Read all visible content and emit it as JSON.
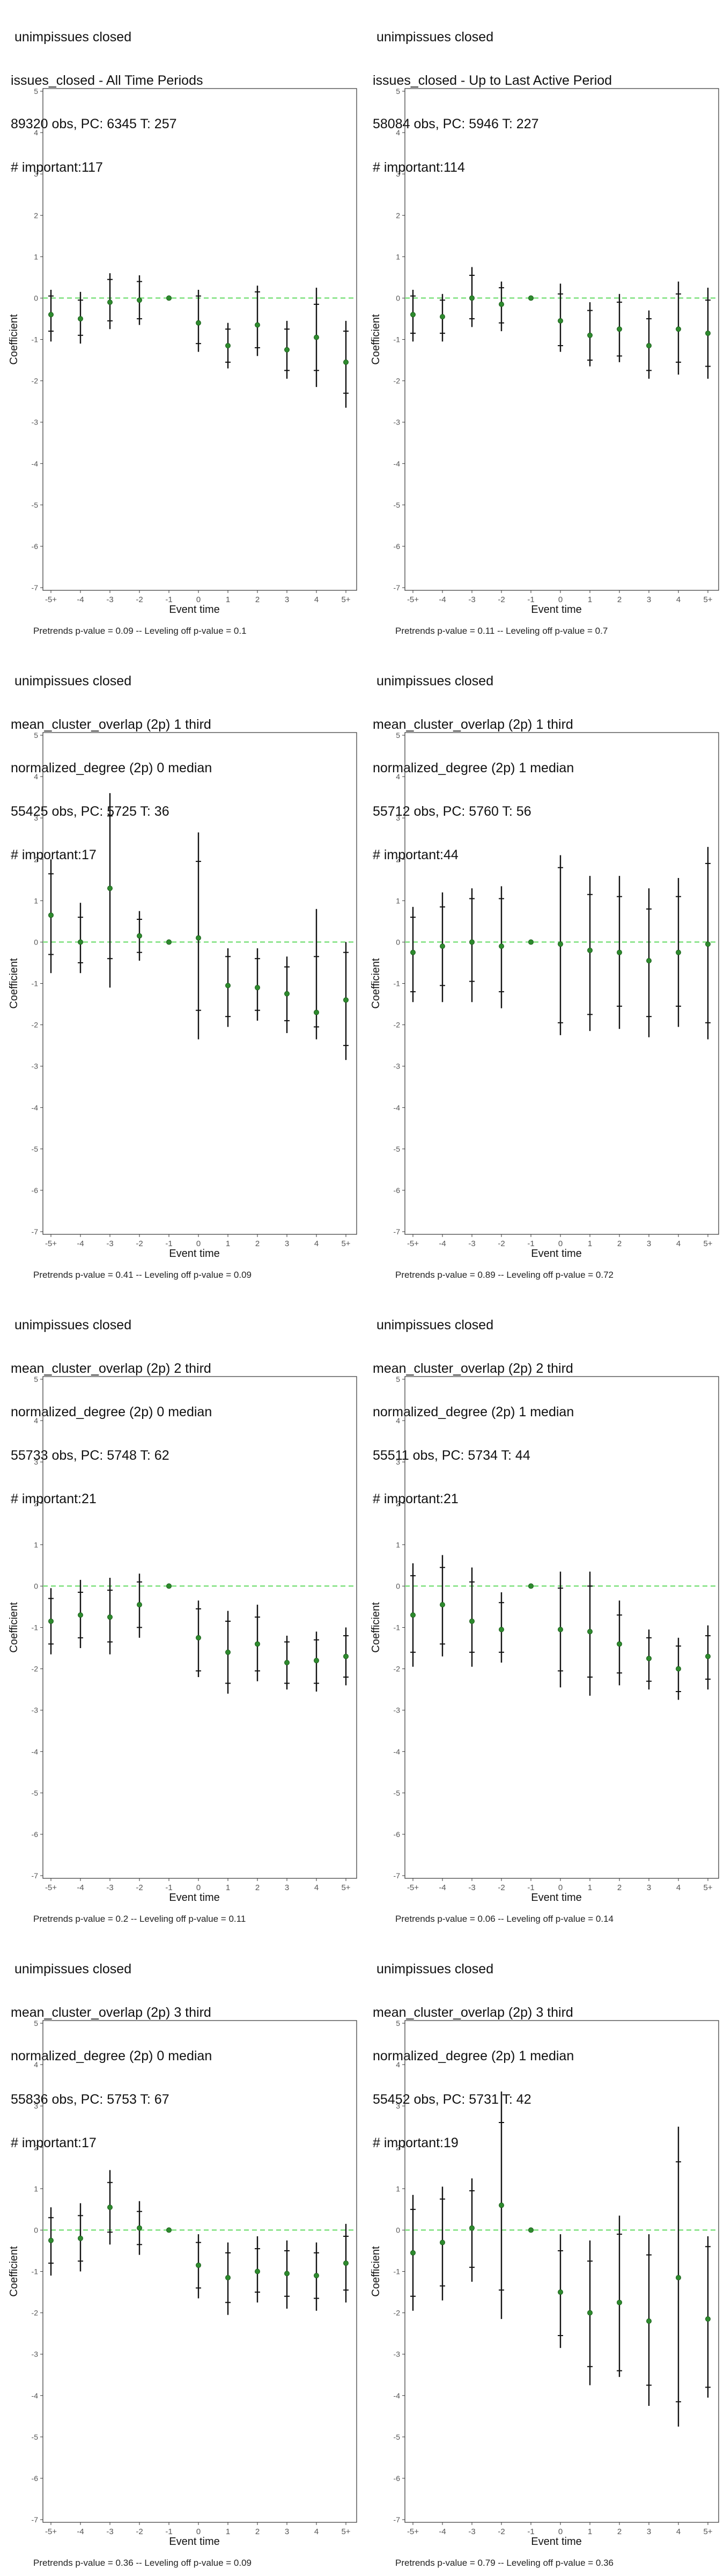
{
  "chart_data": [
    {
      "type": "scatter",
      "title_lines": [
        " unimpissues closed",
        "issues_closed - All Time Periods",
        "89320 obs, PC: 6345 T: 257",
        "# important:117"
      ],
      "xlabel": "Event time",
      "ylabel": "Coefficient",
      "ylim": [
        -7,
        5
      ],
      "y_ticks": [
        "-7",
        "-6",
        "-5",
        "-4",
        "-3",
        "-2",
        "-1",
        "0",
        "1",
        "2",
        "3",
        "4",
        "5"
      ],
      "categories": [
        "-5+",
        "-4",
        "-3",
        "-2",
        "-1",
        "0",
        "1",
        "2",
        "3",
        "4",
        "5+"
      ],
      "coef": [
        -0.4,
        -0.5,
        -0.1,
        -0.05,
        0,
        -0.6,
        -1.15,
        -0.65,
        -1.25,
        -0.95,
        -1.55
      ],
      "ci_outer": [
        [
          -1.05,
          0.2
        ],
        [
          -1.1,
          0.15
        ],
        [
          -0.75,
          0.6
        ],
        [
          -0.65,
          0.55
        ],
        [
          0,
          0
        ],
        [
          -1.3,
          0.2
        ],
        [
          -1.7,
          -0.6
        ],
        [
          -1.4,
          0.3
        ],
        [
          -1.95,
          -0.55
        ],
        [
          -2.15,
          0.25
        ],
        [
          -2.65,
          -0.55
        ]
      ],
      "ci_inner": [
        [
          -0.8,
          0.05
        ],
        [
          -0.9,
          -0.05
        ],
        [
          -0.55,
          0.45
        ],
        [
          -0.5,
          0.4
        ],
        [
          0,
          0
        ],
        [
          -1.1,
          0.05
        ],
        [
          -1.55,
          -0.75
        ],
        [
          -1.2,
          0.15
        ],
        [
          -1.75,
          -0.75
        ],
        [
          -1.75,
          -0.15
        ],
        [
          -2.3,
          -0.8
        ]
      ],
      "reference_line": 0,
      "caption": "Pretrends p-value = 0.09 -- Leveling off p-value = 0.1"
    },
    {
      "type": "scatter",
      "title_lines": [
        " unimpissues closed",
        "issues_closed - Up to Last Active Period",
        "58084 obs, PC: 5946 T: 227",
        "# important:114"
      ],
      "xlabel": "Event time",
      "ylabel": "Coefficient",
      "ylim": [
        -7,
        5
      ],
      "y_ticks": [
        "-7",
        "-6",
        "-5",
        "-4",
        "-3",
        "-2",
        "-1",
        "0",
        "1",
        "2",
        "3",
        "4",
        "5"
      ],
      "categories": [
        "-5+",
        "-4",
        "-3",
        "-2",
        "-1",
        "0",
        "1",
        "2",
        "3",
        "4",
        "5+"
      ],
      "coef": [
        -0.4,
        -0.45,
        0.0,
        -0.15,
        0,
        -0.55,
        -0.9,
        -0.75,
        -1.15,
        -0.75,
        -0.85
      ],
      "ci_outer": [
        [
          -1.05,
          0.2
        ],
        [
          -1.05,
          0.1
        ],
        [
          -0.7,
          0.75
        ],
        [
          -0.8,
          0.4
        ],
        [
          0,
          0
        ],
        [
          -1.3,
          0.35
        ],
        [
          -1.65,
          -0.1
        ],
        [
          -1.55,
          0.1
        ],
        [
          -1.95,
          -0.3
        ],
        [
          -1.85,
          0.4
        ],
        [
          -1.95,
          0.25
        ]
      ],
      "ci_inner": [
        [
          -0.85,
          0.05
        ],
        [
          -0.85,
          -0.05
        ],
        [
          -0.5,
          0.55
        ],
        [
          -0.6,
          0.25
        ],
        [
          0,
          0
        ],
        [
          -1.15,
          0.1
        ],
        [
          -1.5,
          -0.3
        ],
        [
          -1.4,
          -0.1
        ],
        [
          -1.75,
          -0.5
        ],
        [
          -1.55,
          0.1
        ],
        [
          -1.65,
          -0.05
        ]
      ],
      "reference_line": 0,
      "caption": "Pretrends p-value = 0.11 -- Leveling off p-value = 0.7"
    },
    {
      "type": "scatter",
      "title_lines": [
        " unimpissues closed",
        "mean_cluster_overlap (2p) 1 third",
        "normalized_degree (2p) 0 median",
        "55425 obs, PC: 5725 T: 36",
        "# important:17"
      ],
      "xlabel": "Event time",
      "ylabel": "Coefficient",
      "ylim": [
        -7,
        5
      ],
      "y_ticks": [
        "-7",
        "-6",
        "-5",
        "-4",
        "-3",
        "-2",
        "-1",
        "0",
        "1",
        "2",
        "3",
        "4",
        "5"
      ],
      "categories": [
        "-5+",
        "-4",
        "-3",
        "-2",
        "-1",
        "0",
        "1",
        "2",
        "3",
        "4",
        "5+"
      ],
      "coef": [
        0.65,
        0.0,
        1.3,
        0.15,
        0,
        0.1,
        -1.05,
        -1.1,
        -1.25,
        -1.7,
        -1.4
      ],
      "ci_outer": [
        [
          -0.75,
          2.0
        ],
        [
          -0.75,
          0.95
        ],
        [
          -1.1,
          3.6
        ],
        [
          -0.45,
          0.75
        ],
        [
          0,
          0
        ],
        [
          -2.35,
          2.65
        ],
        [
          -2.05,
          -0.15
        ],
        [
          -1.9,
          -0.15
        ],
        [
          -2.2,
          -0.35
        ],
        [
          -2.35,
          0.8
        ],
        [
          -2.85,
          0.0
        ]
      ],
      "ci_inner": [
        [
          -0.3,
          1.65
        ],
        [
          -0.5,
          0.6
        ],
        [
          -0.4,
          3.05
        ],
        [
          -0.25,
          0.55
        ],
        [
          0,
          0
        ],
        [
          -1.65,
          1.95
        ],
        [
          -1.8,
          -0.35
        ],
        [
          -1.65,
          -0.4
        ],
        [
          -1.9,
          -0.6
        ],
        [
          -2.05,
          -0.35
        ],
        [
          -2.5,
          -0.25
        ]
      ],
      "reference_line": 0,
      "caption": "Pretrends p-value = 0.41 -- Leveling off p-value = 0.09"
    },
    {
      "type": "scatter",
      "title_lines": [
        " unimpissues closed",
        "mean_cluster_overlap (2p) 1 third",
        "normalized_degree (2p) 1 median",
        "55712 obs, PC: 5760 T: 56",
        "# important:44"
      ],
      "xlabel": "Event time",
      "ylabel": "Coefficient",
      "ylim": [
        -7,
        5
      ],
      "y_ticks": [
        "-7",
        "-6",
        "-5",
        "-4",
        "-3",
        "-2",
        "-1",
        "0",
        "1",
        "2",
        "3",
        "4",
        "5"
      ],
      "categories": [
        "-5+",
        "-4",
        "-3",
        "-2",
        "-1",
        "0",
        "1",
        "2",
        "3",
        "4",
        "5+"
      ],
      "coef": [
        -0.25,
        -0.1,
        0.0,
        -0.1,
        0,
        -0.05,
        -0.2,
        -0.25,
        -0.45,
        -0.25,
        -0.05
      ],
      "ci_outer": [
        [
          -1.45,
          0.85
        ],
        [
          -1.45,
          1.2
        ],
        [
          -1.45,
          1.3
        ],
        [
          -1.6,
          1.35
        ],
        [
          0,
          0
        ],
        [
          -2.25,
          2.1
        ],
        [
          -2.15,
          1.6
        ],
        [
          -2.1,
          1.6
        ],
        [
          -2.3,
          1.3
        ],
        [
          -2.05,
          1.55
        ],
        [
          -2.35,
          2.3
        ]
      ],
      "ci_inner": [
        [
          -1.2,
          0.6
        ],
        [
          -1.05,
          0.85
        ],
        [
          -0.95,
          1.05
        ],
        [
          -1.2,
          1.05
        ],
        [
          0,
          0
        ],
        [
          -1.95,
          1.8
        ],
        [
          -1.75,
          1.15
        ],
        [
          -1.55,
          1.1
        ],
        [
          -1.8,
          0.8
        ],
        [
          -1.55,
          1.1
        ],
        [
          -1.95,
          1.9
        ]
      ],
      "reference_line": 0,
      "caption": "Pretrends p-value = 0.89 -- Leveling off p-value = 0.72"
    },
    {
      "type": "scatter",
      "title_lines": [
        " unimpissues closed",
        "mean_cluster_overlap (2p) 2 third",
        "normalized_degree (2p) 0 median",
        "55733 obs, PC: 5748 T: 62",
        "# important:21"
      ],
      "xlabel": "Event time",
      "ylabel": "Coefficient",
      "ylim": [
        -7,
        5
      ],
      "y_ticks": [
        "-7",
        "-6",
        "-5",
        "-4",
        "-3",
        "-2",
        "-1",
        "0",
        "1",
        "2",
        "3",
        "4",
        "5"
      ],
      "categories": [
        "-5+",
        "-4",
        "-3",
        "-2",
        "-1",
        "0",
        "1",
        "2",
        "3",
        "4",
        "5+"
      ],
      "coef": [
        -0.85,
        -0.7,
        -0.75,
        -0.45,
        0,
        -1.25,
        -1.6,
        -1.4,
        -1.85,
        -1.8,
        -1.7
      ],
      "ci_outer": [
        [
          -1.65,
          -0.05
        ],
        [
          -1.5,
          0.15
        ],
        [
          -1.65,
          0.2
        ],
        [
          -1.25,
          0.3
        ],
        [
          0,
          0
        ],
        [
          -2.2,
          -0.35
        ],
        [
          -2.6,
          -0.6
        ],
        [
          -2.3,
          -0.45
        ],
        [
          -2.5,
          -1.2
        ],
        [
          -2.55,
          -1.1
        ],
        [
          -2.4,
          -1.0
        ]
      ],
      "ci_inner": [
        [
          -1.4,
          -0.3
        ],
        [
          -1.25,
          -0.15
        ],
        [
          -1.35,
          -0.1
        ],
        [
          -1.0,
          0.1
        ],
        [
          0,
          0
        ],
        [
          -2.05,
          -0.55
        ],
        [
          -2.35,
          -0.85
        ],
        [
          -2.05,
          -0.75
        ],
        [
          -2.35,
          -1.35
        ],
        [
          -2.35,
          -1.3
        ],
        [
          -2.2,
          -1.2
        ]
      ],
      "reference_line": 0,
      "caption": "Pretrends p-value = 0.2 -- Leveling off p-value = 0.11"
    },
    {
      "type": "scatter",
      "title_lines": [
        " unimpissues closed",
        "mean_cluster_overlap (2p) 2 third",
        "normalized_degree (2p) 1 median",
        "55511 obs, PC: 5734 T: 44",
        "# important:21"
      ],
      "xlabel": "Event time",
      "ylabel": "Coefficient",
      "ylim": [
        -7,
        5
      ],
      "y_ticks": [
        "-7",
        "-6",
        "-5",
        "-4",
        "-3",
        "-2",
        "-1",
        "0",
        "1",
        "2",
        "3",
        "4",
        "5"
      ],
      "categories": [
        "-5+",
        "-4",
        "-3",
        "-2",
        "-1",
        "0",
        "1",
        "2",
        "3",
        "4",
        "5+"
      ],
      "coef": [
        -0.7,
        -0.45,
        -0.85,
        -1.05,
        0,
        -1.05,
        -1.1,
        -1.4,
        -1.75,
        -2.0,
        -1.7
      ],
      "ci_outer": [
        [
          -1.95,
          0.55
        ],
        [
          -1.7,
          0.75
        ],
        [
          -1.95,
          0.45
        ],
        [
          -1.85,
          -0.15
        ],
        [
          0,
          0
        ],
        [
          -2.45,
          0.35
        ],
        [
          -2.65,
          0.35
        ],
        [
          -2.4,
          -0.35
        ],
        [
          -2.5,
          -1.05
        ],
        [
          -2.75,
          -1.25
        ],
        [
          -2.5,
          -0.95
        ]
      ],
      "ci_inner": [
        [
          -1.6,
          0.25
        ],
        [
          -1.4,
          0.45
        ],
        [
          -1.6,
          0.1
        ],
        [
          -1.6,
          -0.4
        ],
        [
          0,
          0
        ],
        [
          -2.05,
          -0.05
        ],
        [
          -2.2,
          0.0
        ],
        [
          -2.1,
          -0.7
        ],
        [
          -2.3,
          -1.25
        ],
        [
          -2.55,
          -1.45
        ],
        [
          -2.25,
          -1.2
        ]
      ],
      "reference_line": 0,
      "caption": "Pretrends p-value = 0.06 -- Leveling off p-value = 0.14"
    },
    {
      "type": "scatter",
      "title_lines": [
        " unimpissues closed",
        "mean_cluster_overlap (2p) 3 third",
        "normalized_degree (2p) 0 median",
        "55836 obs, PC: 5753 T: 67",
        "# important:17"
      ],
      "xlabel": "Event time",
      "ylabel": "Coefficient",
      "ylim": [
        -7,
        5
      ],
      "y_ticks": [
        "-7",
        "-6",
        "-5",
        "-4",
        "-3",
        "-2",
        "-1",
        "0",
        "1",
        "2",
        "3",
        "4",
        "5"
      ],
      "categories": [
        "-5+",
        "-4",
        "-3",
        "-2",
        "-1",
        "0",
        "1",
        "2",
        "3",
        "4",
        "5+"
      ],
      "coef": [
        -0.25,
        -0.2,
        0.55,
        0.05,
        0,
        -0.85,
        -1.15,
        -1.0,
        -1.05,
        -1.1,
        -0.8
      ],
      "ci_outer": [
        [
          -1.1,
          0.55
        ],
        [
          -1.0,
          0.65
        ],
        [
          -0.35,
          1.45
        ],
        [
          -0.6,
          0.7
        ],
        [
          0,
          0
        ],
        [
          -1.65,
          -0.1
        ],
        [
          -2.05,
          -0.3
        ],
        [
          -1.75,
          -0.15
        ],
        [
          -1.9,
          -0.25
        ],
        [
          -1.95,
          -0.3
        ],
        [
          -1.75,
          0.15
        ]
      ],
      "ci_inner": [
        [
          -0.8,
          0.3
        ],
        [
          -0.75,
          0.35
        ],
        [
          -0.05,
          1.15
        ],
        [
          -0.35,
          0.45
        ],
        [
          0,
          0
        ],
        [
          -1.4,
          -0.3
        ],
        [
          -1.75,
          -0.55
        ],
        [
          -1.5,
          -0.45
        ],
        [
          -1.6,
          -0.5
        ],
        [
          -1.65,
          -0.55
        ],
        [
          -1.45,
          -0.15
        ]
      ],
      "reference_line": 0,
      "caption": "Pretrends p-value = 0.36 -- Leveling off p-value = 0.09"
    },
    {
      "type": "scatter",
      "title_lines": [
        " unimpissues closed",
        "mean_cluster_overlap (2p) 3 third",
        "normalized_degree (2p) 1 median",
        "55452 obs, PC: 5731 T: 42",
        "# important:19"
      ],
      "xlabel": "Event time",
      "ylabel": "Coefficient",
      "ylim": [
        -7,
        5
      ],
      "y_ticks": [
        "-7",
        "-6",
        "-5",
        "-4",
        "-3",
        "-2",
        "-1",
        "0",
        "1",
        "2",
        "3",
        "4",
        "5"
      ],
      "categories": [
        "-5+",
        "-4",
        "-3",
        "-2",
        "-1",
        "0",
        "1",
        "2",
        "3",
        "4",
        "5+"
      ],
      "coef": [
        -0.55,
        -0.3,
        0.05,
        0.6,
        0,
        -1.5,
        -2.0,
        -1.75,
        -2.2,
        -1.15,
        -2.15
      ],
      "ci_outer": [
        [
          -1.95,
          0.85
        ],
        [
          -1.7,
          1.05
        ],
        [
          -1.25,
          1.25
        ],
        [
          -2.15,
          3.35
        ],
        [
          0,
          0
        ],
        [
          -2.85,
          -0.1
        ],
        [
          -3.75,
          -0.25
        ],
        [
          -3.55,
          0.35
        ],
        [
          -4.25,
          -0.1
        ],
        [
          -4.75,
          2.5
        ],
        [
          -4.05,
          -0.15
        ]
      ],
      "ci_inner": [
        [
          -1.6,
          0.5
        ],
        [
          -1.35,
          0.75
        ],
        [
          -0.9,
          0.95
        ],
        [
          -1.45,
          2.6
        ],
        [
          0,
          0
        ],
        [
          -2.55,
          -0.5
        ],
        [
          -3.3,
          -0.75
        ],
        [
          -3.4,
          -0.1
        ],
        [
          -3.75,
          -0.6
        ],
        [
          -4.15,
          1.65
        ],
        [
          -3.8,
          -0.4
        ]
      ],
      "reference_line": 0,
      "caption": "Pretrends p-value = 0.79 -- Leveling off p-value = 0.36"
    }
  ],
  "colors": {
    "point": "#2e8b2e",
    "errorbar": "#111111",
    "reference_line": "#7ee07e",
    "axis": "#333333",
    "tick_text": "#555555"
  }
}
